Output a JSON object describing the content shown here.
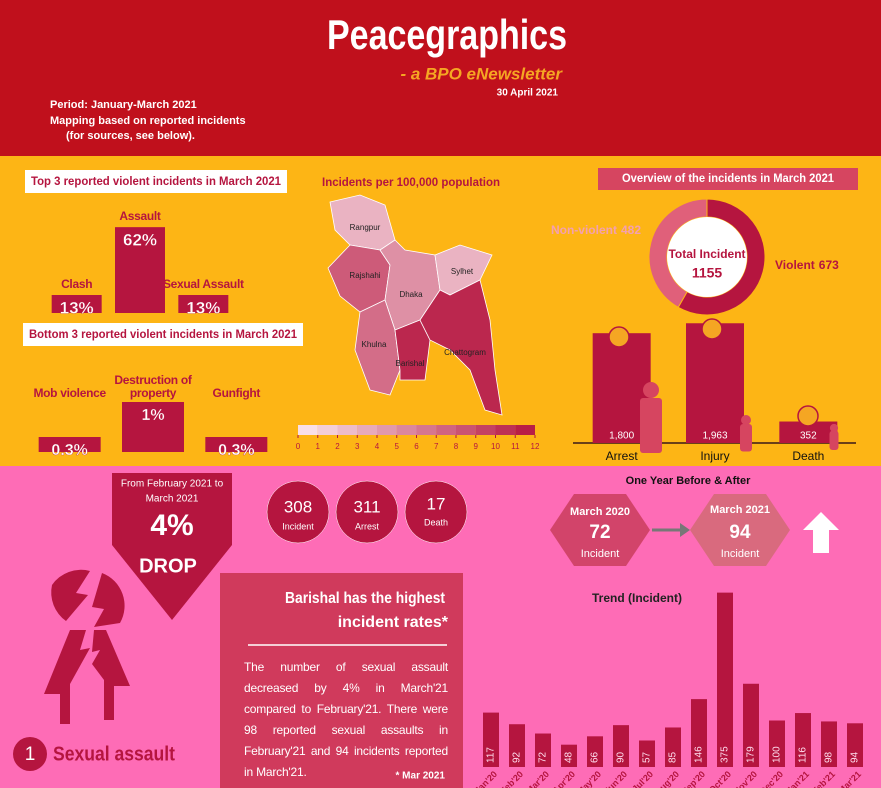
{
  "header": {
    "title": "Peacegraphics",
    "subtitle": "- a BPO eNewsletter",
    "date": "30 April 2021",
    "period": "Period: January-March 2021",
    "note_1": "Mapping based on reported incidents",
    "note_2": "(for sources, see below)."
  },
  "chart_data": [
    {
      "type": "bar",
      "title": "Top 3 reported violent incidents in March 2021",
      "categories": [
        "Clash",
        "Assault",
        "Sexual Assault"
      ],
      "values": [
        13,
        62,
        13
      ],
      "value_labels": [
        "13%",
        "62%",
        "13%"
      ],
      "color": "#b5153f",
      "ylim": [
        0,
        65
      ]
    },
    {
      "type": "bar",
      "title": "Bottom 3 reported violent incidents in March 2021",
      "categories": [
        "Mob violence",
        "Destruction of property",
        "Gunfight"
      ],
      "values": [
        0.3,
        1,
        0.3
      ],
      "value_labels": [
        "0.3%",
        "1%",
        "0.3%"
      ],
      "color": "#b5153f",
      "ylim": [
        0,
        1.2
      ]
    },
    {
      "type": "choropleth",
      "title": "Incidents per 100,000 population",
      "categories": [
        "Rangpur",
        "Rajshahi",
        "Dhaka",
        "Sylhet",
        "Khulna",
        "Barishal",
        "Chattogram"
      ],
      "values": [
        3,
        8,
        5,
        3,
        7,
        11,
        11
      ],
      "scale": [
        0,
        12
      ],
      "color_range": [
        "#fce8ee",
        "#b5153f"
      ],
      "legend_ticks": [
        0,
        1,
        2,
        3,
        4,
        5,
        6,
        7,
        8,
        9,
        10,
        11,
        12
      ]
    },
    {
      "type": "donut",
      "title": "Overview of the incidents in March 2021",
      "categories": [
        "Non-violent",
        "Violent"
      ],
      "values": [
        482,
        673
      ],
      "colors": [
        "#e0607a",
        "#b5153f"
      ],
      "center_label": "Total Incident",
      "center_value": 1155
    },
    {
      "type": "bar",
      "categories": [
        "Arrest",
        "Injury",
        "Death"
      ],
      "values": [
        1800,
        1963,
        352
      ],
      "value_labels": [
        "1,800",
        "1,963",
        "352"
      ],
      "color": "#b5153f",
      "ylim": [
        0,
        2000
      ]
    },
    {
      "type": "bar",
      "title": "Trend (Incident)",
      "categories": [
        "Jan'20",
        "Feb'20",
        "Mar'20",
        "Apr'20",
        "May'20",
        "Jun'20",
        "Jul'20",
        "Aug'20",
        "Sep'20",
        "Oct'20",
        "Nov'20",
        "Dec'20",
        "Jan'21",
        "Feb'21",
        "Mar'21"
      ],
      "values": [
        117,
        92,
        72,
        48,
        66,
        90,
        57,
        85,
        146,
        375,
        179,
        100,
        116,
        98,
        94
      ],
      "color": "#b5153f",
      "ylim": [
        0,
        400
      ]
    }
  ],
  "change": {
    "text_1": "From February 2021 to",
    "text_2": "March 2021",
    "value": "4%",
    "label": "DROP"
  },
  "counts": [
    {
      "value": 308,
      "label": "Incident"
    },
    {
      "value": 311,
      "label": "Arrest"
    },
    {
      "value": 17,
      "label": "Death"
    }
  ],
  "comparison": {
    "title": "One Year Before & After",
    "before": {
      "period": "March 2020",
      "value": 72,
      "label": "Incident"
    },
    "after": {
      "period": "March 2021",
      "value": 94,
      "label": "Incident"
    }
  },
  "highlight": {
    "headline_1": "Barishal has the highest",
    "headline_2": "incident rates*",
    "body": "The number of sexual assault decreased by 4% in March'21 compared to February'21. There were 98 reported sexual assaults in February'21 and 94 incidents reported in March'21.",
    "footnote": "* Mar 2021"
  },
  "topic": {
    "number": "1",
    "name": "Sexual assault"
  }
}
